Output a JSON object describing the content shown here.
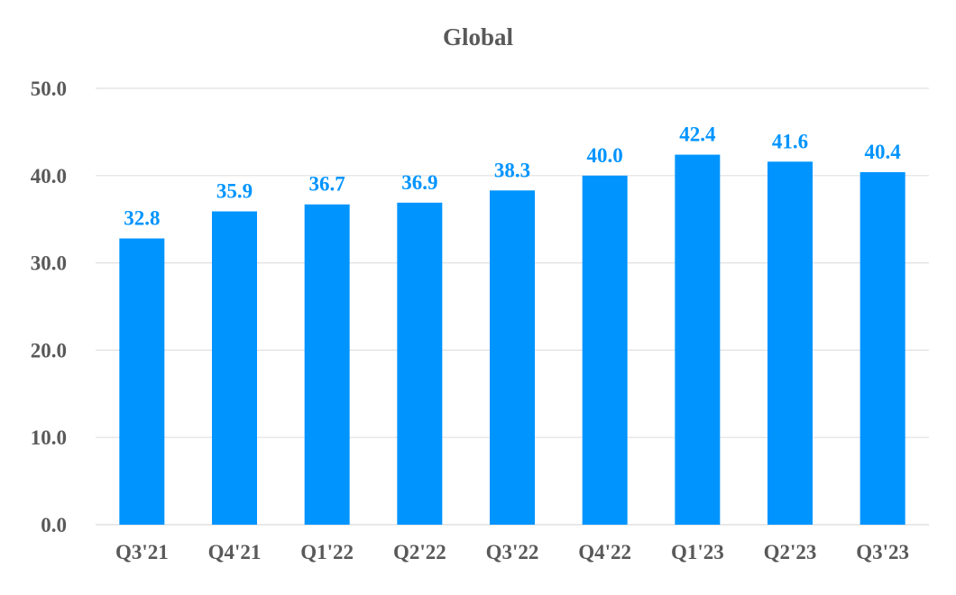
{
  "chart_data": {
    "type": "bar",
    "title": "Global",
    "xlabel": "",
    "ylabel": "",
    "categories": [
      "Q3'21",
      "Q4'21",
      "Q1'22",
      "Q2'22",
      "Q3'22",
      "Q4'22",
      "Q1'23",
      "Q2'23",
      "Q3'23"
    ],
    "values": [
      32.8,
      35.9,
      36.7,
      36.9,
      38.3,
      40.0,
      42.4,
      41.6,
      40.4
    ],
    "data_labels": [
      "32.8",
      "35.9",
      "36.7",
      "36.9",
      "38.3",
      "40.0",
      "42.4",
      "41.6",
      "40.4"
    ],
    "ylim": [
      0,
      50
    ],
    "y_ticks": [
      0,
      10,
      20,
      30,
      40,
      50
    ],
    "y_tick_labels": [
      "0.0",
      "10.0",
      "20.0",
      "30.0",
      "40.0",
      "50.0"
    ],
    "grid": true,
    "legend": "none",
    "colors": {
      "bar": "#0094ff",
      "data_label": "#0094ff",
      "text": "#595959",
      "grid": "#e0e0e0"
    }
  }
}
